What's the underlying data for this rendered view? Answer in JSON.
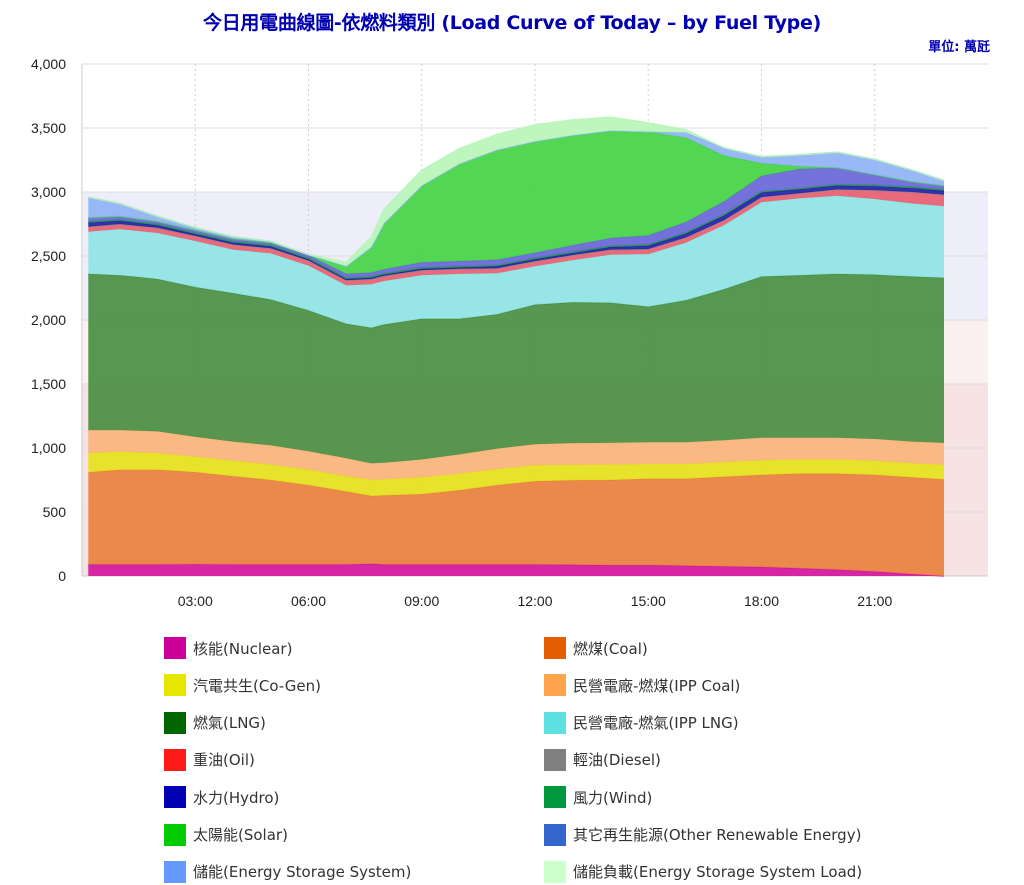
{
  "title": "今日用電曲線圖-依燃料類別 (Load Curve of Today – by Fuel Type)",
  "unit": "單位: 萬瓩",
  "colors": {
    "nuclear": "#d4169e",
    "coal": "#e8813e",
    "cogen": "#e5e21c",
    "ipp_coal": "#f9b47c",
    "lng": "#4a8f42",
    "ipp_lng": "#8fe4e4",
    "oil": "#e86070",
    "diesel": "#888888",
    "hydro": "#2222aa",
    "wind": "#27994a",
    "other_renewable": "#6a66d8",
    "solar": "#44d444",
    "storage": "#8fb2f5",
    "storage_load": "#b8f5b8"
  },
  "chart_data": {
    "type": "area",
    "stacked": true,
    "title": "今日用電曲線圖-依燃料類別 (Load Curve of Today – by Fuel Type)",
    "ylabel": "",
    "xlabel": "",
    "ylim": [
      0,
      4000
    ],
    "xlim": [
      "00:00",
      "24:00"
    ],
    "y_ticks": [
      "0",
      "500",
      "1,000",
      "1,500",
      "2,000",
      "2,500",
      "3,000",
      "3,500",
      "4,000"
    ],
    "x_ticks": [
      "03:00",
      "06:00",
      "09:00",
      "12:00",
      "15:00",
      "18:00",
      "21:00"
    ],
    "grid": true,
    "background_bands": [
      {
        "from": 0,
        "to": 1500,
        "color": "#f6e2e3"
      },
      {
        "from": 1500,
        "to": 2000,
        "color": "#fcf1f1"
      },
      {
        "from": 2000,
        "to": 3000,
        "color": "#eeeefa"
      }
    ],
    "x": [
      "00:10",
      "01:00",
      "02:00",
      "03:00",
      "04:00",
      "05:00",
      "06:00",
      "07:00",
      "07:40",
      "08:00",
      "09:00",
      "10:00",
      "11:00",
      "12:00",
      "13:00",
      "14:00",
      "15:00",
      "16:00",
      "17:00",
      "18:00",
      "19:00",
      "20:00",
      "21:00",
      "22:00",
      "22:50"
    ],
    "series": [
      {
        "key": "nuclear",
        "name": "核能(Nuclear)",
        "values": [
          90,
          90,
          90,
          92,
          90,
          90,
          90,
          90,
          95,
          90,
          90,
          90,
          90,
          90,
          88,
          85,
          85,
          80,
          75,
          70,
          60,
          50,
          35,
          15,
          0
        ]
      },
      {
        "key": "coal",
        "name": "燃煤(Coal)",
        "values": [
          720,
          740,
          740,
          720,
          690,
          660,
          620,
          570,
          530,
          540,
          550,
          580,
          620,
          650,
          660,
          665,
          675,
          680,
          700,
          720,
          740,
          750,
          755,
          755,
          755
        ]
      },
      {
        "key": "cogen",
        "name": "汽電共生(Co-Gen)",
        "values": [
          150,
          140,
          130,
          120,
          120,
          120,
          120,
          120,
          125,
          125,
          130,
          130,
          125,
          125,
          120,
          120,
          115,
          115,
          115,
          115,
          110,
          110,
          110,
          110,
          115
        ]
      },
      {
        "key": "ipp_coal",
        "name": "民營電廠-燃煤(IPP Coal)",
        "values": [
          180,
          170,
          170,
          155,
          150,
          150,
          145,
          140,
          130,
          130,
          140,
          150,
          160,
          165,
          170,
          170,
          170,
          170,
          170,
          175,
          170,
          170,
          170,
          170,
          170
        ]
      },
      {
        "key": "lng",
        "name": "燃氣(LNG)",
        "values": [
          1220,
          1210,
          1190,
          1170,
          1160,
          1140,
          1100,
          1050,
          1060,
          1080,
          1100,
          1060,
          1050,
          1090,
          1100,
          1095,
          1060,
          1110,
          1180,
          1260,
          1270,
          1280,
          1285,
          1290,
          1290
        ]
      },
      {
        "key": "ipp_lng",
        "name": "民營電廠-燃氣(IPP LNG)",
        "values": [
          330,
          360,
          360,
          360,
          340,
          360,
          350,
          300,
          340,
          340,
          340,
          350,
          320,
          300,
          330,
          375,
          410,
          450,
          500,
          580,
          600,
          610,
          590,
          570,
          560
        ]
      },
      {
        "key": "oil",
        "name": "重油(Oil)",
        "values": [
          40,
          40,
          40,
          40,
          40,
          40,
          40,
          40,
          40,
          40,
          40,
          40,
          40,
          40,
          40,
          40,
          40,
          40,
          40,
          40,
          40,
          50,
          70,
          90,
          90
        ]
      },
      {
        "key": "diesel",
        "name": "輕油(Diesel)",
        "values": [
          0,
          0,
          0,
          0,
          0,
          0,
          0,
          0,
          0,
          0,
          0,
          0,
          0,
          0,
          0,
          0,
          0,
          0,
          0,
          0,
          0,
          0,
          0,
          0,
          0
        ]
      },
      {
        "key": "hydro",
        "name": "水力(Hydro)",
        "values": [
          30,
          25,
          20,
          15,
          15,
          15,
          10,
          10,
          10,
          10,
          10,
          10,
          15,
          15,
          15,
          20,
          25,
          30,
          35,
          35,
          30,
          30,
          30,
          30,
          30
        ]
      },
      {
        "key": "wind",
        "name": "風力(Wind)",
        "values": [
          10,
          10,
          10,
          10,
          10,
          10,
          10,
          10,
          10,
          10,
          10,
          10,
          10,
          10,
          10,
          10,
          10,
          10,
          10,
          10,
          10,
          10,
          10,
          10,
          10
        ]
      },
      {
        "key": "other_renewable",
        "name": "其它再生能源(Other Renewable Energy)",
        "values": [
          30,
          25,
          20,
          20,
          20,
          20,
          20,
          30,
          30,
          30,
          40,
          40,
          40,
          40,
          50,
          60,
          70,
          80,
          100,
          120,
          150,
          130,
          80,
          40,
          30
        ]
      },
      {
        "key": "solar",
        "name": "太陽能(Solar)",
        "values": [
          0,
          0,
          0,
          0,
          0,
          0,
          5,
          60,
          200,
          360,
          600,
          760,
          860,
          870,
          860,
          840,
          810,
          660,
          360,
          100,
          20,
          0,
          0,
          0,
          0
        ]
      },
      {
        "key": "storage",
        "name": "儲能(Energy Storage System)",
        "values": [
          160,
          100,
          40,
          20,
          15,
          10,
          0,
          0,
          0,
          0,
          0,
          0,
          0,
          0,
          0,
          0,
          0,
          40,
          60,
          50,
          90,
          120,
          120,
          90,
          40
        ]
      },
      {
        "key": "storage_load",
        "name": "儲能負載(Energy Storage System Load)",
        "values": [
          0,
          0,
          0,
          0,
          0,
          0,
          0,
          30,
          80,
          110,
          120,
          120,
          120,
          130,
          120,
          105,
          70,
          20,
          0,
          0,
          0,
          0,
          0,
          0,
          0
        ]
      }
    ],
    "legend_position": "bottom"
  },
  "legend": [
    {
      "key": "nuclear",
      "label": "核能(Nuclear)",
      "swatch": "#cc0099"
    },
    {
      "key": "coal",
      "label": "燃煤(Coal)",
      "swatch": "#e65c00"
    },
    {
      "key": "cogen",
      "label": "汽電共生(Co-Gen)",
      "swatch": "#e6e600"
    },
    {
      "key": "ipp_coal",
      "label": "民營電廠-燃煤(IPP Coal)",
      "swatch": "#ffa64d"
    },
    {
      "key": "lng",
      "label": "燃氣(LNG)",
      "swatch": "#006600"
    },
    {
      "key": "ipp_lng",
      "label": "民營電廠-燃氣(IPP LNG)",
      "swatch": "#5ce0e0"
    },
    {
      "key": "oil",
      "label": "重油(Oil)",
      "swatch": "#ff1a1a"
    },
    {
      "key": "diesel",
      "label": "輕油(Diesel)",
      "swatch": "#808080"
    },
    {
      "key": "hydro",
      "label": "水力(Hydro)",
      "swatch": "#0000b3"
    },
    {
      "key": "wind",
      "label": "風力(Wind)",
      "swatch": "#00993d"
    },
    {
      "key": "solar",
      "label": "太陽能(Solar)",
      "swatch": "#00cc00"
    },
    {
      "key": "other_renewable",
      "label": "其它再生能源(Other Renewable Energy)",
      "swatch": "#3366cc"
    },
    {
      "key": "storage",
      "label": "儲能(Energy Storage System)",
      "swatch": "#6699ff"
    },
    {
      "key": "storage_load",
      "label": "儲能負載(Energy Storage System Load)",
      "swatch": "#ccffcc"
    }
  ]
}
